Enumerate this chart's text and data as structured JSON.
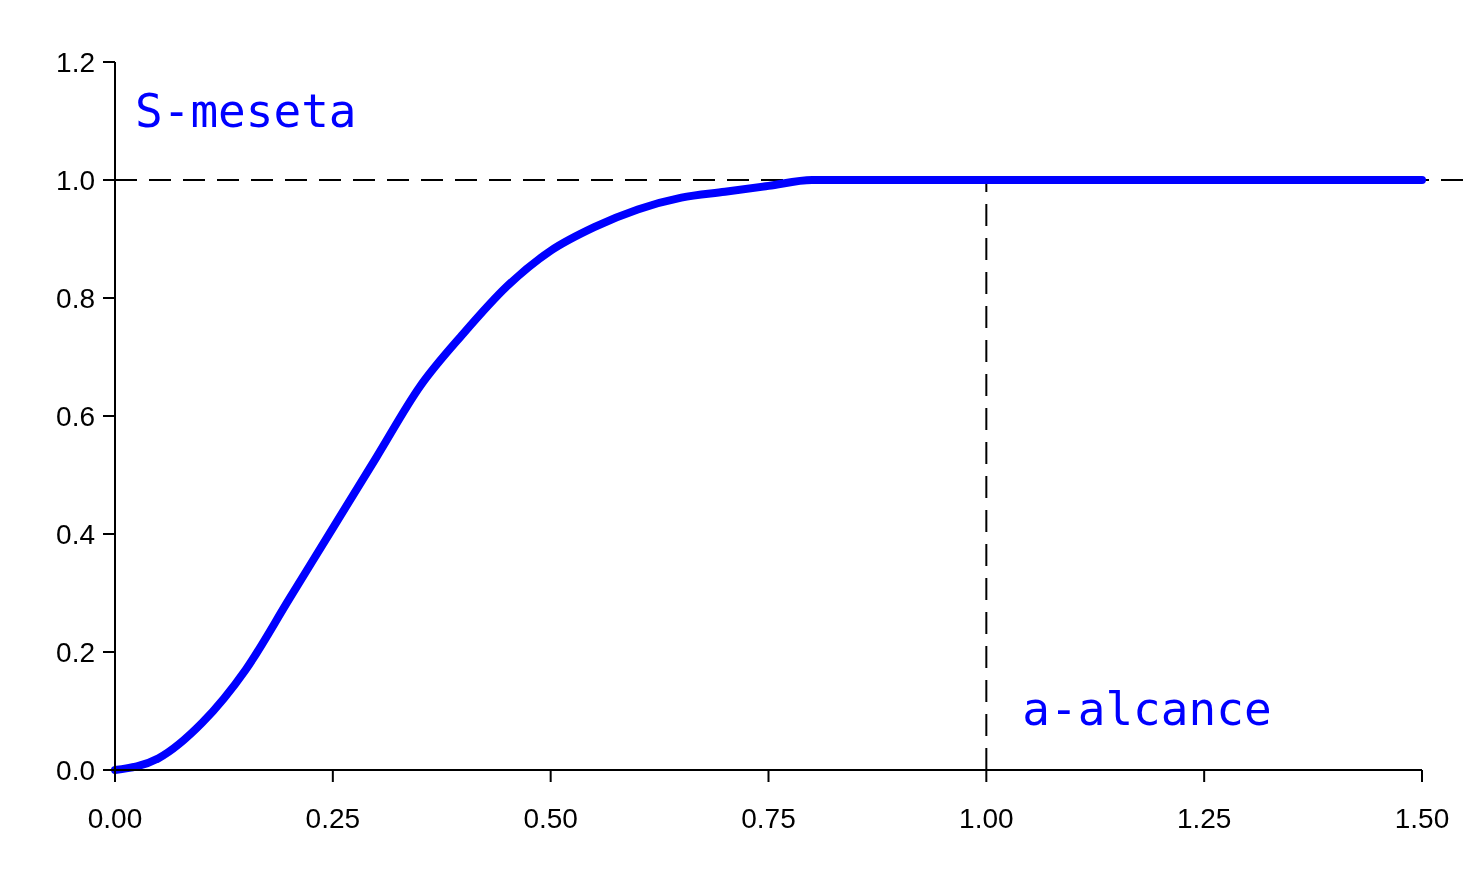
{
  "chart_data": {
    "type": "line",
    "x": [
      0,
      0.05,
      0.1,
      0.15,
      0.2,
      0.25,
      0.3,
      0.35,
      0.4,
      0.45,
      0.5,
      0.55,
      0.6,
      0.65,
      0.7,
      0.75,
      0.8,
      0.9,
      1.0,
      1.25,
      1.5
    ],
    "series": [
      {
        "color": "#0000ff",
        "values": [
          0,
          0.02,
          0.08,
          0.17,
          0.29,
          0.41,
          0.53,
          0.65,
          0.74,
          0.82,
          0.88,
          0.92,
          0.95,
          0.97,
          0.98,
          0.99,
          1.0,
          1.0,
          1.0,
          1.0,
          1.0
        ]
      }
    ],
    "xlim": [
      0,
      1.5
    ],
    "ylim": [
      0,
      1.2
    ],
    "xticks": [
      {
        "value": 0,
        "label": "0.00"
      },
      {
        "value": 0.25,
        "label": "0.25"
      },
      {
        "value": 0.5,
        "label": "0.50"
      },
      {
        "value": 0.75,
        "label": "0.75"
      },
      {
        "value": 1,
        "label": "1.00"
      },
      {
        "value": 1.25,
        "label": "1.25"
      },
      {
        "value": 1.5,
        "label": "1.50"
      }
    ],
    "yticks": [
      {
        "value": 0,
        "label": "0.0"
      },
      {
        "value": 0.2,
        "label": "0.2"
      },
      {
        "value": 0.4,
        "label": "0.4"
      },
      {
        "value": 0.6,
        "label": "0.6"
      },
      {
        "value": 0.8,
        "label": "0.8"
      },
      {
        "value": 1,
        "label": "1.0"
      },
      {
        "value": 1.2,
        "label": "1.2"
      }
    ],
    "ref_lines": [
      {
        "axis": "y",
        "value": 1,
        "label": "S-meseta",
        "color": "#000000",
        "line_style": "dashed"
      },
      {
        "axis": "x",
        "value": 1,
        "label": "a-alcance",
        "color": "#000000",
        "line_style": "dashed"
      }
    ],
    "grid": false,
    "marker": "none",
    "line_style": "solid"
  }
}
